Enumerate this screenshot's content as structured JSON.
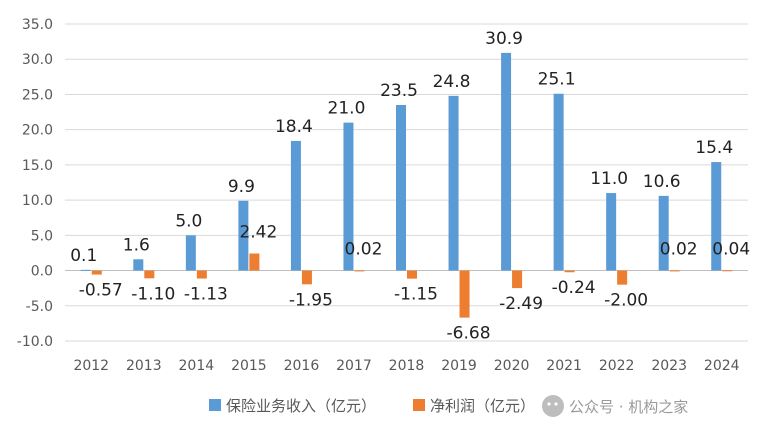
{
  "chart_data": {
    "type": "bar",
    "categories": [
      "2012",
      "2013",
      "2014",
      "2015",
      "2016",
      "2017",
      "2018",
      "2019",
      "2020",
      "2021",
      "2022",
      "2023",
      "2024"
    ],
    "series": [
      {
        "name": "保险业务收入（亿元）",
        "color": "#5B9BD5",
        "values": [
          0.1,
          1.6,
          5.0,
          9.9,
          18.4,
          21.0,
          23.5,
          24.8,
          30.9,
          25.1,
          11.0,
          10.6,
          15.4
        ],
        "labels": [
          "0.1",
          "1.6",
          "5.0",
          "9.9",
          "18.4",
          "21.0",
          "23.5",
          "24.8",
          "30.9",
          "25.1",
          "11.0",
          "10.6",
          "15.4"
        ]
      },
      {
        "name": "净利润（亿元）",
        "color": "#ED7D31",
        "values": [
          -0.57,
          -1.1,
          -1.13,
          2.42,
          -1.95,
          0.02,
          -1.15,
          -6.68,
          -2.49,
          -0.24,
          -2.0,
          0.02,
          0.04
        ],
        "labels": [
          "-0.57",
          "-1.10",
          "-1.13",
          "2.42",
          "-1.95",
          "0.02",
          "-1.15",
          "-6.68",
          "-2.49",
          "-0.24",
          "-2.00",
          "0.02",
          "0.04"
        ]
      }
    ],
    "ylim": [
      -10,
      35
    ],
    "yticks": [
      "-10.0",
      "-5.0",
      "0.0",
      "5.0",
      "10.0",
      "15.0",
      "20.0",
      "25.0",
      "30.0",
      "35.0"
    ],
    "grid": true,
    "legend_position": "bottom",
    "watermark": "公众号 · 机构之家"
  }
}
